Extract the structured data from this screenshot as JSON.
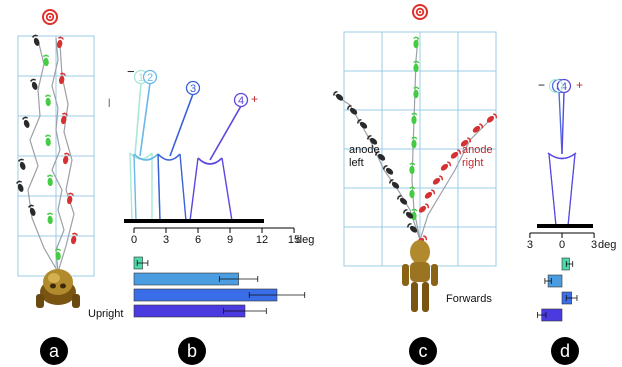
{
  "panels": {
    "a": {
      "letter": "a",
      "caption": "Upright"
    },
    "b": {
      "letter": "b",
      "stick_labels": [
        "1",
        "2",
        "3",
        "4"
      ],
      "minus": "−",
      "plus": "+",
      "axis_ticks": [
        "0",
        "3",
        "6",
        "9",
        "12",
        "15"
      ],
      "axis_unit": "deg",
      "bars": [
        {
          "value": 0.8,
          "err": 0.5,
          "color": "#4fd8a8"
        },
        {
          "value": 9.8,
          "err": 1.8,
          "color": "#4a9de0"
        },
        {
          "value": 13.4,
          "err": 2.6,
          "color": "#3a6ee8"
        },
        {
          "value": 10.4,
          "err": 2.0,
          "color": "#4a3ae0"
        }
      ]
    },
    "c": {
      "letter": "c",
      "caption": "Forwards",
      "anode_left": [
        "anode",
        "left"
      ],
      "anode_right": [
        "anode",
        "right"
      ]
    },
    "d": {
      "letter": "d",
      "minus": "−",
      "plus": "+",
      "stick_labels": [
        "3",
        "4"
      ],
      "axis_ticks": [
        "3",
        "0",
        "3"
      ],
      "axis_unit": "deg",
      "bars": [
        {
          "value": 0.7,
          "err": 0.3,
          "color": "#4fd8a8"
        },
        {
          "value": -1.3,
          "err": 0.3,
          "color": "#4a9de0"
        },
        {
          "value": 0.9,
          "err": 0.5,
          "color": "#3a6ee8"
        },
        {
          "value": -1.9,
          "err": 0.4,
          "color": "#4a3ae0"
        }
      ]
    }
  },
  "colors": {
    "grid": "#9ccbe6",
    "foot_red": "#d63030",
    "foot_green": "#44cc44",
    "foot_black": "#2a2a2a",
    "target_red": "#e0302a",
    "anode_red": "#c0282a",
    "plus_red": "#c0282a",
    "figure_brown": "#8a6414"
  }
}
